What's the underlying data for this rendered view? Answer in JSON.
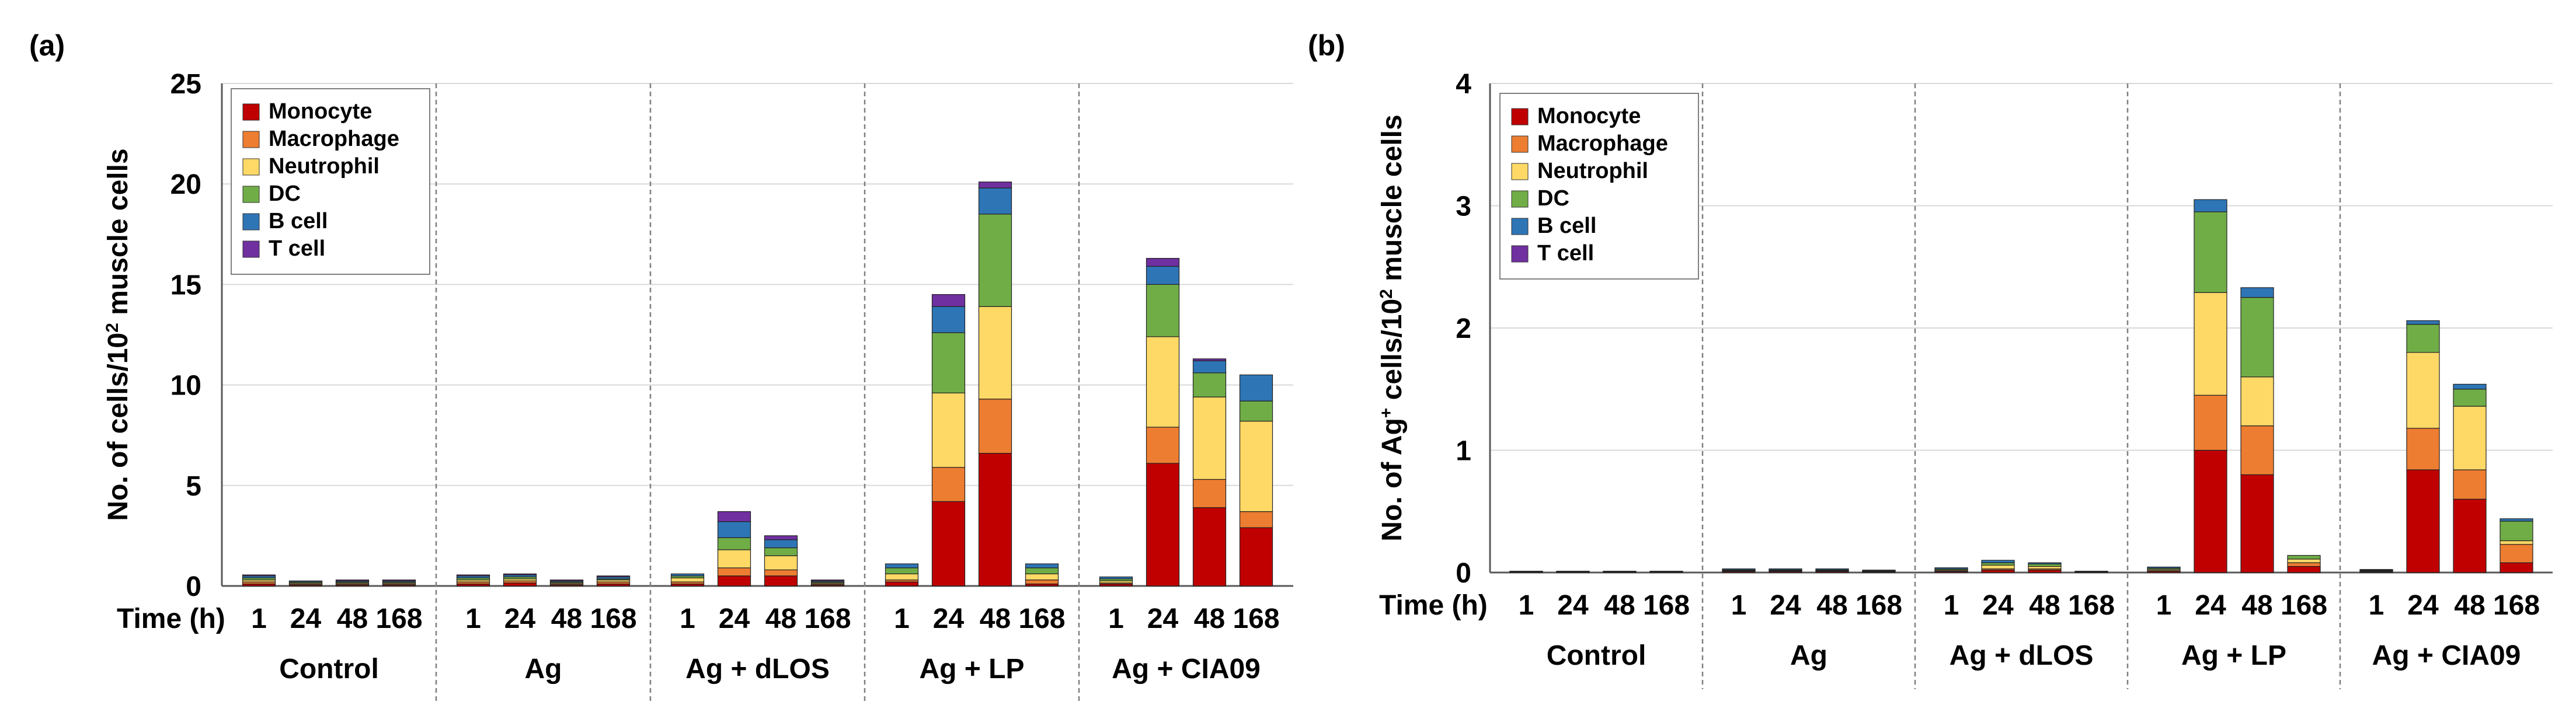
{
  "colors": {
    "Monocyte": "#c00000",
    "Macrophage": "#ed7d31",
    "Neutrophil": "#ffd966",
    "DC": "#70ad47",
    "B cell": "#2e75b6",
    "T cell": "#7030a0"
  },
  "chart_data": [
    {
      "type": "bar",
      "stacked": true,
      "panel_label": "(a)",
      "ylabel": "No. of cells/10² muscle cells",
      "ylabel_main": "No. of cells/10",
      "ylabel_sup": "2",
      "ylabel_tail": " muscle cells",
      "ylim": [
        0,
        25
      ],
      "yticks": [
        "0",
        "5",
        "10",
        "15",
        "20",
        "25"
      ],
      "ytick_values": [
        0,
        5,
        10,
        15,
        20,
        25
      ],
      "grid": true,
      "legend": "top-left",
      "xaxis_title": "Time (h)",
      "times": [
        "1",
        "24",
        "48",
        "168"
      ],
      "groups": [
        "Control",
        "Ag",
        "Ag + dLOS",
        "Ag + LP",
        "Ag + CIA09"
      ],
      "series_names": [
        "Monocyte",
        "Macrophage",
        "Neutrophil",
        "DC",
        "B cell",
        "T cell"
      ],
      "values": [
        [
          [
            0.1,
            0.1,
            0.1,
            0.1,
            0.1,
            0.05
          ],
          [
            0.05,
            0.05,
            0.05,
            0.05,
            0.05,
            0.0
          ],
          [
            0.05,
            0.05,
            0.05,
            0.05,
            0.05,
            0.05
          ],
          [
            0.05,
            0.05,
            0.05,
            0.05,
            0.05,
            0.05
          ]
        ],
        [
          [
            0.1,
            0.1,
            0.1,
            0.1,
            0.1,
            0.05
          ],
          [
            0.15,
            0.1,
            0.1,
            0.1,
            0.1,
            0.05
          ],
          [
            0.05,
            0.05,
            0.05,
            0.05,
            0.05,
            0.05
          ],
          [
            0.1,
            0.1,
            0.1,
            0.05,
            0.1,
            0.05
          ]
        ],
        [
          [
            0.1,
            0.1,
            0.2,
            0.1,
            0.1,
            0.0
          ],
          [
            0.5,
            0.4,
            0.9,
            0.6,
            0.8,
            0.5
          ],
          [
            0.5,
            0.3,
            0.7,
            0.4,
            0.4,
            0.2
          ],
          [
            0.05,
            0.05,
            0.05,
            0.05,
            0.05,
            0.05
          ]
        ],
        [
          [
            0.2,
            0.1,
            0.3,
            0.3,
            0.2,
            0.0
          ],
          [
            4.2,
            1.7,
            3.7,
            3.0,
            1.3,
            0.6
          ],
          [
            6.6,
            2.7,
            4.6,
            4.6,
            1.3,
            0.3
          ],
          [
            0.1,
            0.2,
            0.3,
            0.3,
            0.2,
            0.0
          ]
        ],
        [
          [
            0.1,
            0.05,
            0.1,
            0.1,
            0.1,
            0.0
          ],
          [
            6.1,
            1.8,
            4.5,
            2.6,
            0.9,
            0.4
          ],
          [
            3.9,
            1.4,
            4.1,
            1.2,
            0.6,
            0.1
          ],
          [
            2.9,
            0.8,
            4.5,
            1.0,
            1.3,
            0.0
          ]
        ]
      ]
    },
    {
      "type": "bar",
      "stacked": true,
      "panel_label": "(b)",
      "ylabel": "No. of Ag⁺ cells/10² muscle cells",
      "ylabel_main": "No. of Ag",
      "ylabel_sup": "+",
      "ylabel_mid": " cells/10",
      "ylabel_sup2": "2",
      "ylabel_tail": " muscle cells",
      "ylim": [
        0,
        4
      ],
      "yticks": [
        "0",
        "1",
        "2",
        "3",
        "4"
      ],
      "ytick_values": [
        0,
        1,
        2,
        3,
        4
      ],
      "grid": true,
      "legend": "top-left",
      "xaxis_title": "Time (h)",
      "times": [
        "1",
        "24",
        "48",
        "168"
      ],
      "groups": [
        "Control",
        "Ag",
        "Ag + dLOS",
        "Ag + LP",
        "Ag + CIA09"
      ],
      "series_names": [
        "Monocyte",
        "Macrophage",
        "Neutrophil",
        "DC",
        "B cell",
        "T cell"
      ],
      "values": [
        [
          [
            0.003,
            0.002,
            0.002,
            0.002,
            0.002,
            0.0
          ],
          [
            0.003,
            0.002,
            0.002,
            0.002,
            0.002,
            0.0
          ],
          [
            0.003,
            0.002,
            0.002,
            0.002,
            0.002,
            0.0
          ],
          [
            0.003,
            0.002,
            0.002,
            0.002,
            0.002,
            0.0
          ]
        ],
        [
          [
            0.008,
            0.004,
            0.005,
            0.005,
            0.008,
            0.0
          ],
          [
            0.008,
            0.004,
            0.005,
            0.005,
            0.008,
            0.0
          ],
          [
            0.008,
            0.004,
            0.005,
            0.005,
            0.008,
            0.0
          ],
          [
            0.005,
            0.003,
            0.004,
            0.004,
            0.004,
            0.0
          ]
        ],
        [
          [
            0.008,
            0.005,
            0.008,
            0.008,
            0.01,
            0.0
          ],
          [
            0.02,
            0.01,
            0.03,
            0.02,
            0.02,
            0.0
          ],
          [
            0.02,
            0.01,
            0.02,
            0.02,
            0.01,
            0.0
          ],
          [
            0.003,
            0.002,
            0.002,
            0.002,
            0.002,
            0.0
          ]
        ],
        [
          [
            0.01,
            0.005,
            0.01,
            0.01,
            0.01,
            0.0
          ],
          [
            1.0,
            0.45,
            0.84,
            0.66,
            0.1,
            0.0
          ],
          [
            0.8,
            0.4,
            0.4,
            0.65,
            0.08,
            0.0
          ],
          [
            0.05,
            0.03,
            0.03,
            0.03,
            0.0,
            0.0
          ]
        ],
        [
          [
            0.005,
            0.005,
            0.005,
            0.005,
            0.005,
            0.0
          ],
          [
            0.84,
            0.34,
            0.62,
            0.23,
            0.03,
            0.0
          ],
          [
            0.6,
            0.24,
            0.52,
            0.14,
            0.04,
            0.0
          ],
          [
            0.08,
            0.15,
            0.03,
            0.16,
            0.02,
            0.0
          ]
        ]
      ]
    }
  ]
}
